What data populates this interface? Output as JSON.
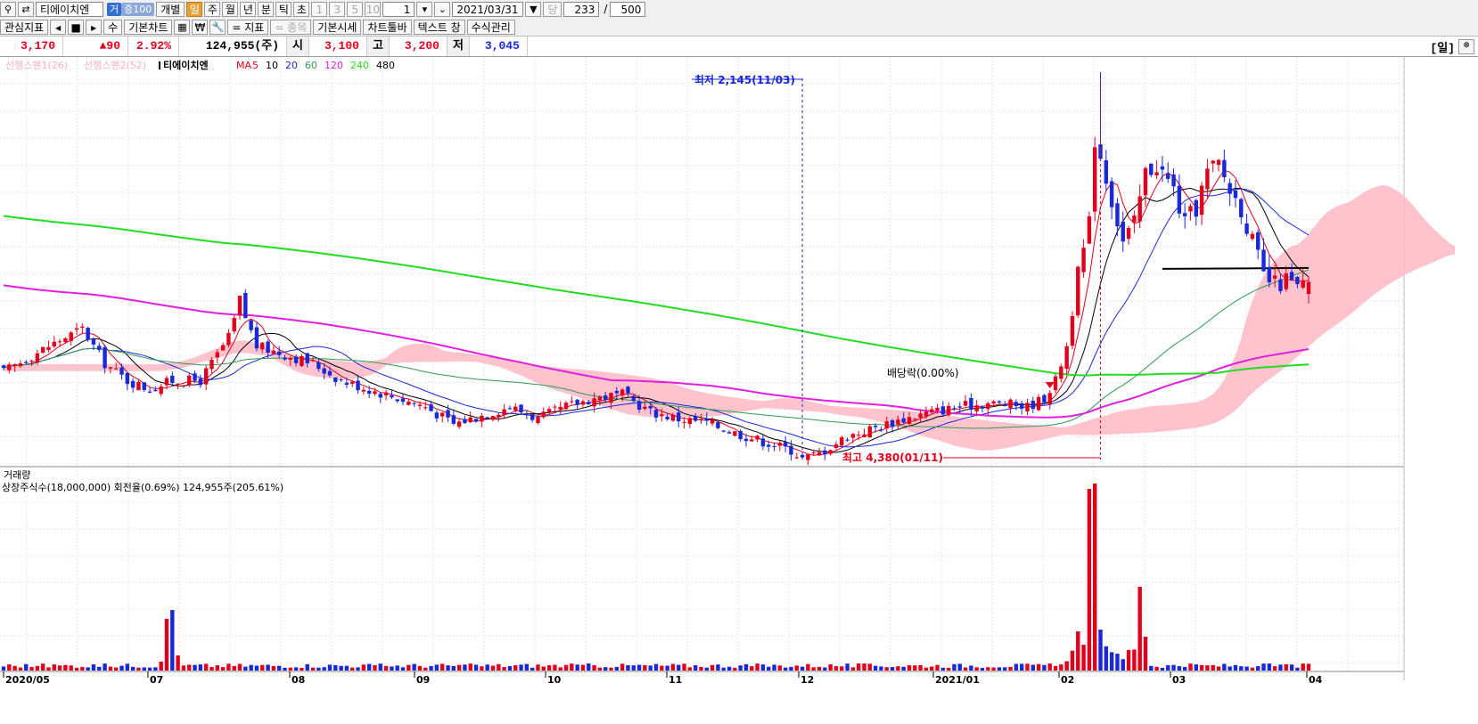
{
  "toolbar": {
    "stock_name": "티에이치엔",
    "badge_a": "거",
    "badge_b": "증100",
    "individual": "개별",
    "periods": [
      "일",
      "주",
      "월",
      "년",
      "분",
      "틱",
      "초"
    ],
    "selected_period": "일",
    "minute_steps": [
      "1",
      "3",
      "5",
      "10"
    ],
    "interval_value": "1",
    "date": "2021/03/31",
    "count_label": "당",
    "count_value": "233",
    "count_sep": "/",
    "count_total": "500"
  },
  "toolbar2": {
    "watch_indicators": "관심지표",
    "nav_left": "◂",
    "nav_stop": "■",
    "nav_right": "▸",
    "su": "수",
    "basic_chart": "기본차트",
    "won": "₩",
    "indicator": "= 지표",
    "item": "= 종목",
    "basic_quote": "기본시세",
    "chart_toolbar": "차트툴바",
    "text_line": "텍스트 창",
    "formula_mgmt": "수식관리"
  },
  "info": {
    "price": "3,170",
    "change": "▲90",
    "rate": "2.92%",
    "volume": "124,955(주)",
    "open_label": "시",
    "open": "3,100",
    "high_label": "고",
    "high": "3,200",
    "low_label": "저",
    "low": "3,045",
    "period_tag": "[일]"
  },
  "legend": {
    "span1": "선행스팬1(26)",
    "span2": "선행스팬2(52)",
    "name": "티에이치엔",
    "ma_label": "MA",
    "ma": [
      {
        "p": "5",
        "color": "#e1001c"
      },
      {
        "p": "10",
        "color": "#000000"
      },
      {
        "p": "20",
        "color": "#1a28d8"
      },
      {
        "p": "60",
        "color": "#2e9a52"
      },
      {
        "p": "120",
        "color": "#e020e0"
      },
      {
        "p": "240",
        "color": "#22dd22"
      },
      {
        "p": "480",
        "color": "#000000"
      }
    ]
  },
  "annotations": {
    "low": "최저 2,145(11/03)",
    "high": "최고 4,380(01/11)",
    "dividend": "배당락(0.00%)"
  },
  "volume_panel": {
    "title": "거래량",
    "subtitle": "상장주식수(18,000,000) 회전율(0.69%) 124,955주(205.61%)"
  },
  "chart_data": {
    "type": "candlestick",
    "x_ticks": [
      "2020/05",
      "07",
      "08",
      "09",
      "10",
      "11",
      "12",
      "2021/01",
      "02",
      "03",
      "04"
    ],
    "ohlc_approx_key_points": [
      {
        "date": "2020/05",
        "close": 2700
      },
      {
        "date": "07",
        "close": 3000
      },
      {
        "date": "08",
        "close": 2550
      },
      {
        "date": "09",
        "close": 2450
      },
      {
        "date": "10",
        "close": 2400
      },
      {
        "date": "11/03",
        "close": 2200,
        "low": 2145
      },
      {
        "date": "12",
        "close": 2450
      },
      {
        "date": "01/11",
        "high": 4380,
        "close": 3900
      },
      {
        "date": "02",
        "close": 3750
      },
      {
        "date": "03",
        "close": 3250
      },
      {
        "date": "03/31",
        "open": 3100,
        "high": 3200,
        "low": 3045,
        "close": 3170
      }
    ],
    "colors": {
      "up": "#e1001c",
      "down": "#1a28d8",
      "cloud": "#ffb8c6"
    }
  }
}
